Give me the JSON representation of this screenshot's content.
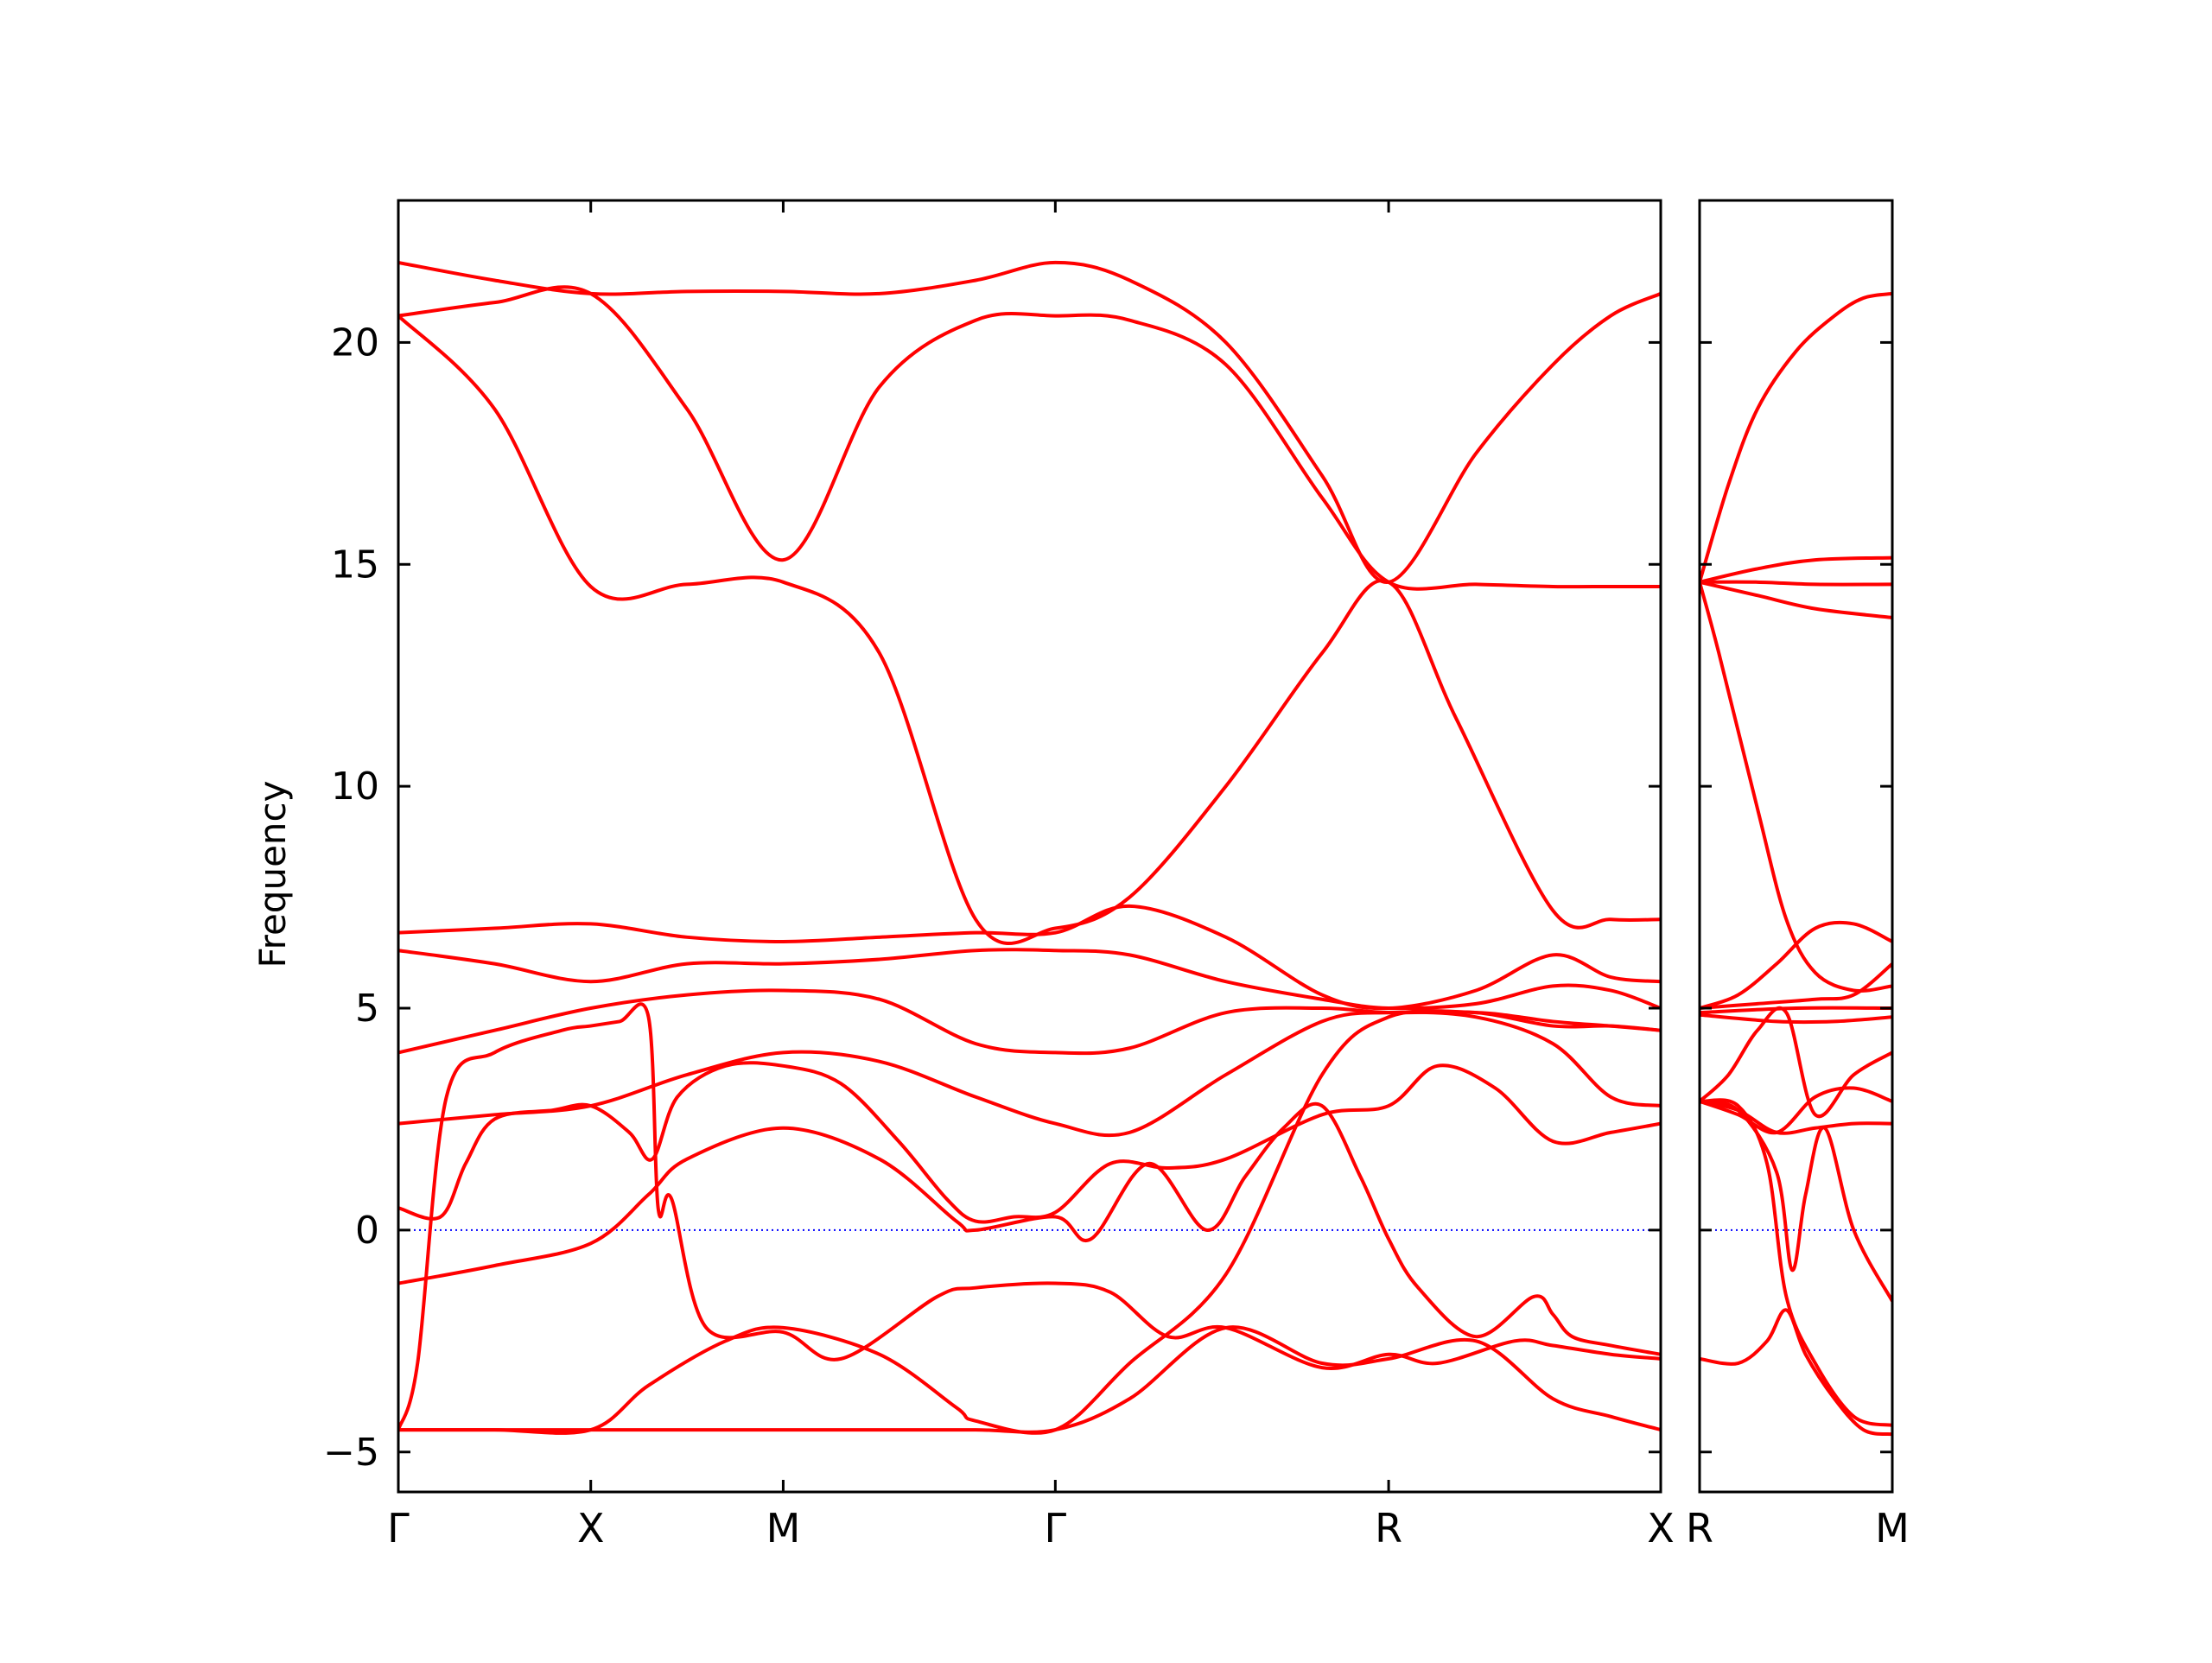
{
  "chart_data": {
    "type": "line",
    "title": "",
    "xlabel": "",
    "ylabel": "Frequency",
    "ylim": [
      -5.9,
      23.2
    ],
    "yticks": [
      -5,
      0,
      5,
      10,
      15,
      20
    ],
    "ytick_labels": [
      "−5",
      "0",
      "5",
      "10",
      "15",
      "20"
    ],
    "zero_line_color": "#0000ff",
    "band_color": "#ff0000",
    "grid": false,
    "legend": "none",
    "panels": [
      {
        "path_labels": [
          "Γ",
          "X",
          "M",
          "Γ",
          "R",
          "X"
        ],
        "segment_lengths": [
          1,
          1,
          1.414,
          1.732,
          1.414
        ],
        "bands": [
          {
            "x": [
              0,
              0.5,
              1.0,
              1.5,
              2.0,
              2.5,
              3.0,
              3.414,
              3.8,
              4.3,
              4.8,
              5.146,
              5.5,
              6.0,
              6.3,
              6.56
            ],
            "y": [
              20.6,
              18.5,
              14.5,
              14.55,
              14.6,
              13.0,
              7.0,
              6.8,
              7.5,
              10.0,
              13.0,
              14.6,
              11.5,
              7.2,
              7.0,
              7.0
            ]
          },
          {
            "x": [
              0,
              0.5,
              1.0,
              1.5,
              2.0,
              2.5,
              3.0,
              3.414,
              3.8,
              4.3,
              4.8,
              5.146,
              5.6,
              6.0,
              6.3,
              6.56
            ],
            "y": [
              21.8,
              21.4,
              21.1,
              21.15,
              21.15,
              21.1,
              21.4,
              21.8,
              21.4,
              20.0,
              17.0,
              14.6,
              17.5,
              19.5,
              20.6,
              21.1
            ]
          },
          {
            "x": [
              0,
              0.5,
              1.0,
              1.5,
              2.0,
              2.5,
              3.0,
              3.414,
              3.8,
              4.3,
              4.8,
              5.146,
              5.6,
              6.0,
              6.3,
              6.56
            ],
            "y": [
              20.6,
              20.9,
              21.1,
              18.5,
              15.1,
              19.0,
              20.5,
              20.6,
              20.5,
              19.5,
              16.5,
              14.6,
              14.55,
              14.5,
              14.5,
              14.5
            ]
          },
          {
            "x": [
              0,
              0.5,
              1.0,
              1.5,
              2.0,
              2.5,
              3.0,
              3.414,
              3.8,
              4.3,
              4.8,
              5.146,
              5.6,
              6.0,
              6.3,
              6.56
            ],
            "y": [
              6.7,
              6.8,
              6.9,
              6.6,
              6.5,
              6.6,
              6.7,
              6.7,
              7.3,
              6.6,
              5.3,
              5.0,
              5.4,
              6.2,
              5.7,
              5.6
            ]
          },
          {
            "x": [
              0,
              0.5,
              1.0,
              1.5,
              2.0,
              2.5,
              3.0,
              3.414,
              3.8,
              4.3,
              4.8,
              5.146,
              5.6,
              6.0,
              6.3,
              6.56
            ],
            "y": [
              6.3,
              6.0,
              5.6,
              6.0,
              6.0,
              6.1,
              6.3,
              6.3,
              6.2,
              5.6,
              5.2,
              5.0,
              5.1,
              5.5,
              5.4,
              5.0
            ]
          },
          {
            "x": [
              0,
              0.5,
              1.0,
              1.5,
              2.0,
              2.5,
              3.0,
              3.414,
              3.8,
              4.3,
              4.8,
              5.146,
              5.6,
              6.0,
              6.3,
              6.56
            ],
            "y": [
              4.0,
              4.5,
              5.0,
              5.3,
              5.4,
              5.2,
              4.2,
              4.0,
              4.1,
              4.9,
              5.0,
              4.9,
              4.9,
              4.6,
              4.6,
              4.5
            ]
          },
          {
            "x": [
              0,
              0.5,
              1.0,
              1.5,
              2.0,
              2.5,
              3.0,
              3.414,
              3.8,
              4.3,
              4.8,
              5.146,
              5.6,
              6.0,
              6.3,
              6.56
            ],
            "y": [
              2.4,
              2.6,
              2.8,
              3.5,
              4.0,
              3.8,
              3.0,
              2.4,
              2.2,
              3.5,
              4.7,
              4.9,
              4.8,
              4.2,
              3.0,
              2.8
            ]
          },
          {
            "x": [
              0,
              0.22,
              0.35,
              0.5,
              0.8,
              1.0,
              1.2,
              1.32,
              1.45,
              1.7,
              2.0,
              2.3,
              2.6,
              2.85,
              3.0,
              3.2,
              3.414,
              3.7,
              4.0,
              4.3,
              4.8,
              5.146,
              5.4,
              5.7,
              6.0,
              6.3,
              6.56
            ],
            "y": [
              0.5,
              0.3,
              1.5,
              2.5,
              2.7,
              2.8,
              2.2,
              1.6,
              3.0,
              3.7,
              3.7,
              3.3,
              2.0,
              0.7,
              0.2,
              0.3,
              0.4,
              1.5,
              1.4,
              1.6,
              2.6,
              2.8,
              3.7,
              3.2,
              2.0,
              2.2,
              2.4
            ]
          },
          {
            "x": [
              0,
              0.5,
              1.0,
              1.3,
              1.5,
              2.0,
              2.5,
              2.9,
              3.0,
              3.414,
              3.6,
              3.9,
              4.2,
              4.4,
              4.6,
              4.8,
              5.0,
              5.146,
              5.3,
              5.6,
              5.9,
              6.0,
              6.1,
              6.3,
              6.56
            ],
            "y": [
              -1.2,
              -0.8,
              -0.3,
              0.8,
              1.6,
              2.3,
              1.6,
              0.2,
              0.0,
              0.3,
              -0.2,
              1.5,
              0.0,
              1.2,
              2.3,
              2.8,
              1.2,
              -0.2,
              -1.3,
              -2.4,
              -1.5,
              -1.9,
              -2.4,
              -2.6,
              -2.8
            ]
          },
          {
            "x": [
              0,
              0.1,
              0.25,
              0.5,
              0.85,
              1.0,
              1.15,
              1.3,
              1.35,
              1.42,
              1.6,
              2.0,
              2.3,
              2.8,
              3.0,
              3.414,
              3.7,
              4.0,
              4.3,
              4.8,
              5.146,
              5.4,
              5.8,
              6.0,
              6.3,
              6.56
            ],
            "y": [
              -4.5,
              -3.0,
              3.0,
              4.0,
              4.5,
              4.6,
              4.7,
              4.8,
              0.5,
              0.7,
              -2.2,
              -2.3,
              -2.9,
              -1.5,
              -1.3,
              -1.2,
              -1.4,
              -2.4,
              -2.2,
              -3.1,
              -2.8,
              -3.0,
              -2.5,
              -2.6,
              -2.8,
              -2.9
            ]
          },
          {
            "x": [
              0,
              0.5,
              1.0,
              1.3,
              1.7,
              2.0,
              2.5,
              2.9,
              3.0,
              3.414,
              3.8,
              4.3,
              4.8,
              5.146,
              5.6,
              6.0,
              6.3,
              6.56
            ],
            "y": [
              -4.5,
              -4.5,
              -4.5,
              -3.5,
              -2.5,
              -2.2,
              -2.8,
              -4.0,
              -4.3,
              -4.5,
              -3.0,
              -1.0,
              3.5,
              4.8,
              4.9,
              4.7,
              4.6,
              4.5
            ]
          },
          {
            "x": [
              0,
              0.5,
              1.0,
              1.5,
              2.0,
              2.5,
              3.0,
              3.414,
              3.8,
              4.3,
              4.8,
              5.146,
              5.6,
              6.0,
              6.3,
              6.56
            ],
            "y": [
              -4.5,
              -4.5,
              -4.5,
              -4.5,
              -4.5,
              -4.5,
              -4.5,
              -4.5,
              -3.8,
              -2.2,
              -3.0,
              -2.9,
              -2.5,
              -3.8,
              -4.2,
              -4.5
            ]
          }
        ]
      },
      {
        "path_labels": [
          "R",
          "M"
        ],
        "segment_lengths": [
          1.0
        ],
        "bands": [
          {
            "x": [
              0,
              0.15,
              0.3,
              0.5,
              0.7,
              0.85,
              1.0
            ],
            "y": [
              14.6,
              16.8,
              18.5,
              19.8,
              20.6,
              21.0,
              21.1
            ]
          },
          {
            "x": [
              0,
              0.3,
              0.6,
              1.0
            ],
            "y": [
              14.6,
              14.9,
              15.1,
              15.15
            ]
          },
          {
            "x": [
              0,
              0.3,
              0.6,
              1.0
            ],
            "y": [
              14.6,
              14.6,
              14.55,
              14.55
            ]
          },
          {
            "x": [
              0,
              0.3,
              0.6,
              1.0
            ],
            "y": [
              14.6,
              14.3,
              14.0,
              13.8
            ]
          },
          {
            "x": [
              0,
              0.1,
              0.3,
              0.45,
              0.6,
              0.8,
              1.0
            ],
            "y": [
              14.6,
              13.0,
              9.5,
              7.0,
              5.8,
              5.4,
              5.5
            ]
          },
          {
            "x": [
              0,
              0.2,
              0.4,
              0.6,
              0.8,
              1.0
            ],
            "y": [
              5.0,
              5.3,
              6.0,
              6.8,
              6.9,
              6.5
            ]
          },
          {
            "x": [
              0,
              0.3,
              0.6,
              0.8,
              1.0
            ],
            "y": [
              5.0,
              5.1,
              5.2,
              5.3,
              6.0
            ]
          },
          {
            "x": [
              0,
              0.5,
              1.0
            ],
            "y": [
              4.9,
              5.0,
              5.0
            ]
          },
          {
            "x": [
              0,
              0.4,
              0.7,
              1.0
            ],
            "y": [
              4.85,
              4.7,
              4.7,
              4.8
            ]
          },
          {
            "x": [
              0,
              0.2,
              0.4,
              0.6,
              0.8,
              1.0
            ],
            "y": [
              2.9,
              2.6,
              2.2,
              3.0,
              3.2,
              2.9
            ]
          },
          {
            "x": [
              0,
              0.2,
              0.4,
              0.6,
              0.8,
              1.0
            ],
            "y": [
              2.9,
              2.7,
              2.2,
              2.3,
              2.4,
              2.4
            ]
          },
          {
            "x": [
              0,
              0.15,
              0.3,
              0.45,
              0.6,
              0.8,
              1.0
            ],
            "y": [
              2.9,
              3.5,
              4.5,
              4.9,
              2.6,
              3.5,
              4.0
            ]
          },
          {
            "x": [
              0,
              0.2,
              0.35,
              0.45,
              0.6,
              0.8,
              1.0
            ],
            "y": [
              2.9,
              2.8,
              1.5,
              -1.5,
              -3.0,
              -4.2,
              -4.4
            ]
          },
          {
            "x": [
              0,
              0.2,
              0.4,
              0.48,
              0.55,
              0.65,
              0.8,
              1.0
            ],
            "y": [
              2.9,
              2.7,
              1.3,
              -0.9,
              0.8,
              2.3,
              0.0,
              -1.6
            ]
          },
          {
            "x": [
              0,
              0.2,
              0.35,
              0.45,
              0.55,
              0.7,
              0.85,
              1.0
            ],
            "y": [
              -2.9,
              -3.0,
              -2.5,
              -1.8,
              -2.8,
              -3.8,
              -4.5,
              -4.6
            ]
          }
        ]
      }
    ]
  }
}
